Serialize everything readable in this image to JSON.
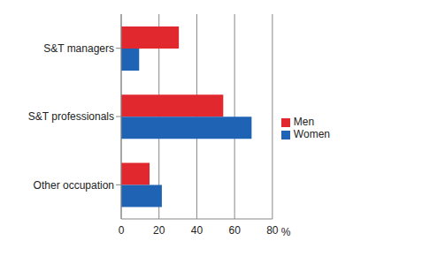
{
  "chart_data": {
    "type": "bar",
    "orientation": "horizontal",
    "categories": [
      "S&T managers",
      "S&T professionals",
      "Other occupation"
    ],
    "series": [
      {
        "name": "Men",
        "color": "#e0282e",
        "values": [
          30.5,
          54,
          15
        ]
      },
      {
        "name": "Women",
        "color": "#1f63b5",
        "values": [
          9.5,
          69,
          21.5
        ]
      }
    ],
    "x_label": "%",
    "xlim": [
      0,
      80
    ],
    "xticks": [
      0,
      20,
      40,
      60,
      80
    ],
    "grid": true,
    "legend": "right"
  }
}
